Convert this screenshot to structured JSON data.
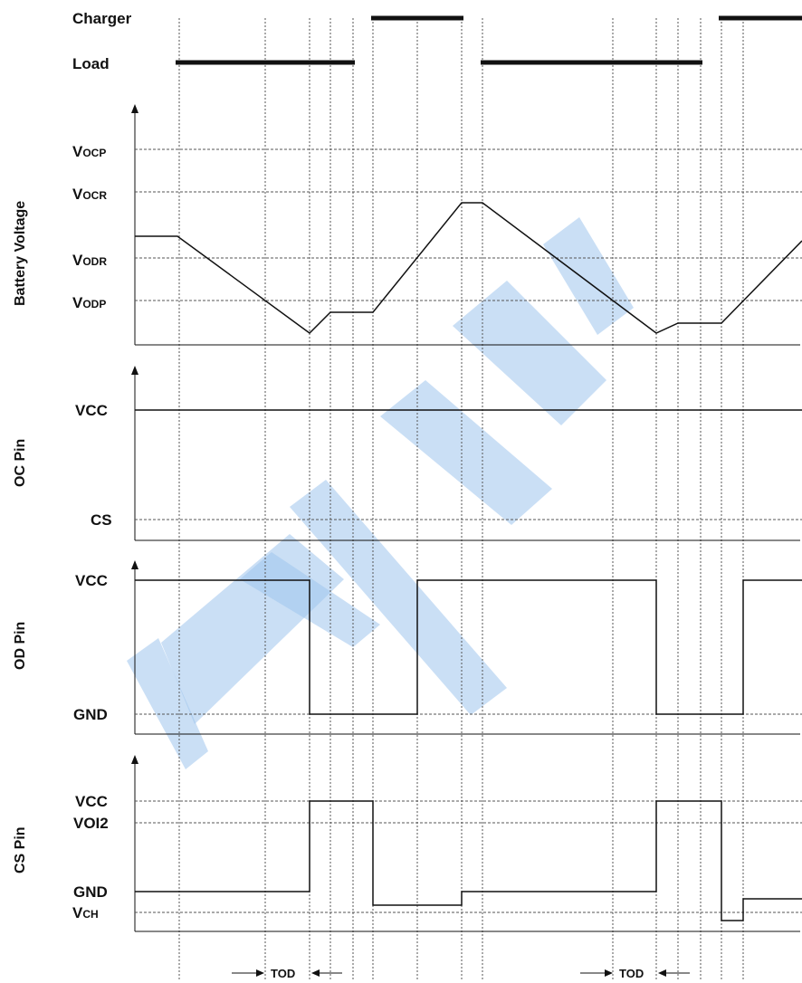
{
  "top": {
    "charger_label": "Charger",
    "load_label": "Load"
  },
  "battery": {
    "axis_label": "Battery Voltage",
    "levels": [
      {
        "main": "V",
        "sub": "OCP"
      },
      {
        "main": "V",
        "sub": "OCR"
      },
      {
        "main": "V",
        "sub": "ODR"
      },
      {
        "main": "V",
        "sub": "ODP"
      }
    ]
  },
  "oc_pin": {
    "axis_label": "OC Pin",
    "levels": [
      "VCC",
      "CS"
    ]
  },
  "od_pin": {
    "axis_label": "OD Pin",
    "levels": [
      "VCC",
      "GND"
    ]
  },
  "cs_pin": {
    "axis_label": "CS Pin",
    "levels": [
      "VCC",
      "VOI2",
      "GND"
    ],
    "vch": {
      "main": "V",
      "sub": "CH"
    }
  },
  "tod_labels": [
    "TOD",
    "TOD"
  ],
  "colors": {
    "line": "#111111",
    "guide": "#555555",
    "watermark": "#9ec4ec"
  }
}
